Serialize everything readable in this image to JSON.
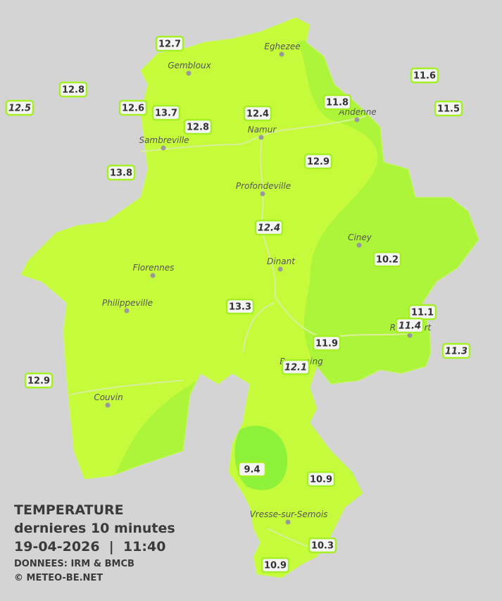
{
  "cities": [
    {
      "name": "Eghezee"
    },
    {
      "name": "Gembloux"
    },
    {
      "name": "Andenne"
    },
    {
      "name": "Namur"
    },
    {
      "name": "Sambreville"
    },
    {
      "name": "Profondeville"
    },
    {
      "name": "Ciney"
    },
    {
      "name": "Dinant"
    },
    {
      "name": "Florennes"
    },
    {
      "name": "Philippeville"
    },
    {
      "name": "Rochefort"
    },
    {
      "name": "Beauraing"
    },
    {
      "name": "Couvin"
    },
    {
      "name": "Vresse-sur-Semois"
    }
  ],
  "stations": [
    {
      "value": 12.7,
      "italic": false
    },
    {
      "value": 12.8,
      "italic": false
    },
    {
      "value": 12.5,
      "italic": true
    },
    {
      "value": 12.6,
      "italic": false
    },
    {
      "value": 13.7,
      "italic": false
    },
    {
      "value": 12.8,
      "italic": false
    },
    {
      "value": 12.4,
      "italic": false
    },
    {
      "value": 11.6,
      "italic": false
    },
    {
      "value": 11.8,
      "italic": false
    },
    {
      "value": 11.5,
      "italic": false
    },
    {
      "value": 13.8,
      "italic": false
    },
    {
      "value": 12.9,
      "italic": false
    },
    {
      "value": 12.4,
      "italic": true
    },
    {
      "value": 10.2,
      "italic": false
    },
    {
      "value": 13.3,
      "italic": false
    },
    {
      "value": 11.1,
      "italic": false
    },
    {
      "value": 11.4,
      "italic": true
    },
    {
      "value": 11.9,
      "italic": false
    },
    {
      "value": 11.3,
      "italic": true
    },
    {
      "value": 12.1,
      "italic": true
    },
    {
      "value": 12.9,
      "italic": false
    },
    {
      "value": 9.4,
      "italic": false
    },
    {
      "value": 10.9,
      "italic": false
    },
    {
      "value": 10.3,
      "italic": false
    },
    {
      "value": 10.9,
      "italic": false
    }
  ],
  "legend": {
    "title": "TEMPERATURE",
    "subtitle": "dernieres 10 minutes",
    "datetime": "19-04-2026  |  11:40",
    "source": "DONNEES: IRM & BMCB",
    "copyright": "© METEO-BE.NET"
  }
}
